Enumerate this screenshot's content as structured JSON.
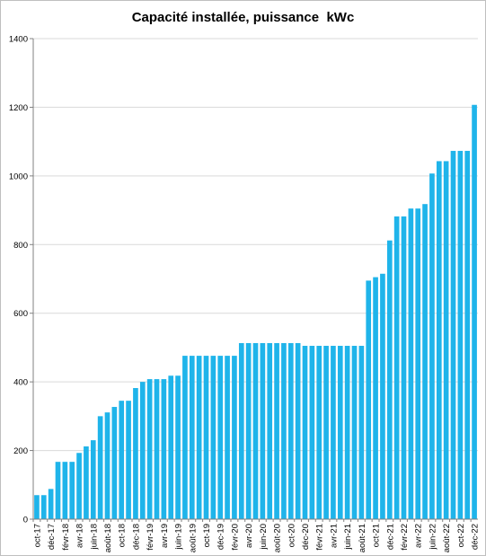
{
  "chart_data": {
    "type": "bar",
    "title": "Capacité installée, puissance  kWc",
    "xlabel": "",
    "ylabel": "",
    "ylim": [
      0,
      1400
    ],
    "yticks": [
      0,
      200,
      400,
      600,
      800,
      1000,
      1200,
      1400
    ],
    "grid": "horizontal",
    "color": "#1fb4ea",
    "categories": [
      "oct-17",
      "nov-17",
      "déc-17",
      "janv-18",
      "févr-18",
      "mars-18",
      "avr-18",
      "mai-18",
      "juin-18",
      "juil-18",
      "août-18",
      "sept-18",
      "oct-18",
      "nov-18",
      "déc-18",
      "janv-19",
      "févr-19",
      "mars-19",
      "avr-19",
      "mai-19",
      "juin-19",
      "juil-19",
      "août-19",
      "sept-19",
      "oct-19",
      "nov-19",
      "déc-19",
      "janv-20",
      "févr-20",
      "mars-20",
      "avr-20",
      "mai-20",
      "juin-20",
      "juil-20",
      "août-20",
      "sept-20",
      "oct-20",
      "nov-20",
      "déc-20",
      "janv-21",
      "févr-21",
      "mars-21",
      "avr-21",
      "mai-21",
      "juin-21",
      "juil-21",
      "août-21",
      "sept-21",
      "oct-21",
      "nov-21",
      "déc-21",
      "janv-22",
      "févr-22",
      "mars-22",
      "avr-22",
      "mai-22",
      "juin-22",
      "juil-22",
      "août-22",
      "sept-22",
      "oct-22",
      "nov-22",
      "déc-22"
    ],
    "tick_labels": [
      "oct-17",
      "",
      "déc-17",
      "",
      "févr-18",
      "",
      "avr-18",
      "",
      "juin-18",
      "",
      "août-18",
      "",
      "oct-18",
      "",
      "déc-18",
      "",
      "févr-19",
      "",
      "avr-19",
      "",
      "juin-19",
      "",
      "août-19",
      "",
      "oct-19",
      "",
      "déc-19",
      "",
      "févr-20",
      "",
      "avr-20",
      "",
      "juin-20",
      "",
      "août-20",
      "",
      "oct-20",
      "",
      "déc-20",
      "",
      "févr-21",
      "",
      "avr-21",
      "",
      "juin-21",
      "",
      "août-21",
      "",
      "oct-21",
      "",
      "déc-21",
      "",
      "févr-22",
      "",
      "avr-22",
      "",
      "juin-22",
      "",
      "août-22",
      "",
      "oct-22",
      "",
      "déc-22"
    ],
    "values": [
      70,
      70,
      88,
      167,
      167,
      167,
      193,
      212,
      230,
      300,
      311,
      327,
      345,
      345,
      382,
      400,
      408,
      408,
      408,
      418,
      418,
      476,
      476,
      476,
      476,
      476,
      476,
      476,
      476,
      513,
      513,
      513,
      513,
      513,
      513,
      513,
      513,
      513,
      505,
      505,
      505,
      505,
      505,
      505,
      505,
      505,
      505,
      695,
      705,
      715,
      812,
      882,
      882,
      905,
      905,
      918,
      1007,
      1043,
      1043,
      1073,
      1073,
      1073,
      1207
    ]
  }
}
